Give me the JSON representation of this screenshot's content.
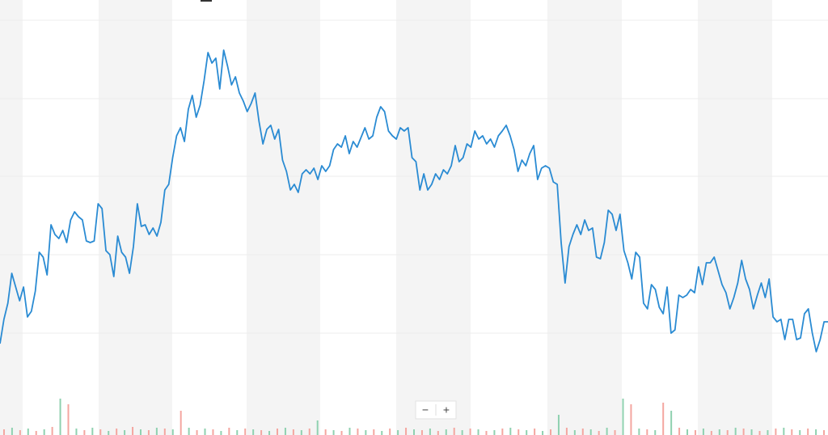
{
  "chart_data": {
    "type": "line",
    "color": "#2a8bd3",
    "grid": true,
    "ylim": [
      0,
      538
    ],
    "yticks": [
      126,
      223,
      320,
      416,
      513
    ],
    "values": [
      113,
      143,
      163,
      200,
      183,
      166,
      183,
      146,
      153,
      178,
      226,
      220,
      198,
      260,
      248,
      243,
      253,
      238,
      266,
      276,
      270,
      266,
      240,
      238,
      240,
      286,
      280,
      228,
      223,
      196,
      246,
      226,
      220,
      200,
      233,
      286,
      258,
      260,
      248,
      256,
      246,
      263,
      303,
      310,
      343,
      370,
      380,
      363,
      403,
      420,
      393,
      408,
      438,
      473,
      460,
      466,
      428,
      476,
      456,
      433,
      443,
      423,
      413,
      400,
      410,
      423,
      388,
      360,
      378,
      383,
      366,
      378,
      340,
      326,
      303,
      310,
      300,
      323,
      328,
      323,
      330,
      316,
      333,
      326,
      333,
      353,
      360,
      356,
      370,
      348,
      363,
      356,
      368,
      380,
      366,
      370,
      393,
      406,
      400,
      376,
      370,
      366,
      380,
      376,
      380,
      343,
      338,
      303,
      323,
      303,
      310,
      323,
      316,
      328,
      323,
      333,
      358,
      338,
      343,
      360,
      356,
      376,
      366,
      370,
      360,
      366,
      356,
      370,
      376,
      383,
      370,
      353,
      326,
      340,
      333,
      348,
      358,
      316,
      330,
      333,
      330,
      313,
      310,
      238,
      188,
      233,
      248,
      260,
      248,
      266,
      253,
      256,
      220,
      218,
      238,
      278,
      273,
      253,
      273,
      228,
      213,
      193,
      226,
      220,
      163,
      156,
      186,
      180,
      158,
      150,
      183,
      126,
      130,
      173,
      170,
      173,
      180,
      176,
      208,
      186,
      213,
      213,
      220,
      203,
      186,
      176,
      156,
      170,
      188,
      216,
      193,
      180,
      156,
      173,
      188,
      170,
      193,
      146,
      140,
      143,
      118,
      143,
      143,
      118,
      120,
      150,
      156,
      126,
      103,
      118,
      140,
      140
    ],
    "volume": {
      "colors": [
        "#f4a6a0",
        "#8fd1b0"
      ],
      "values": [
        7,
        9,
        6,
        8,
        5,
        7,
        10,
        45,
        38,
        8,
        6,
        9,
        7,
        5,
        8,
        6,
        10,
        7,
        6,
        9,
        8,
        7,
        30,
        9,
        6,
        8,
        7,
        5,
        9,
        6,
        8,
        7,
        6,
        5,
        8,
        9,
        7,
        6,
        8,
        18,
        7,
        6,
        5,
        9,
        8,
        6,
        7,
        5,
        8,
        6,
        9,
        7,
        6,
        8,
        5,
        7,
        9,
        6,
        8,
        7,
        5,
        6,
        8,
        9,
        7,
        6,
        8,
        5,
        7,
        25,
        9,
        6,
        8,
        7,
        5,
        9,
        6,
        45,
        38,
        8,
        7,
        6,
        40,
        30,
        9,
        7,
        6,
        8,
        5,
        7,
        6,
        9,
        8,
        7,
        5,
        6,
        8,
        9,
        7,
        6,
        8,
        7,
        6
      ]
    }
  },
  "controls": {
    "zoom_out": "−",
    "zoom_in": "+"
  }
}
